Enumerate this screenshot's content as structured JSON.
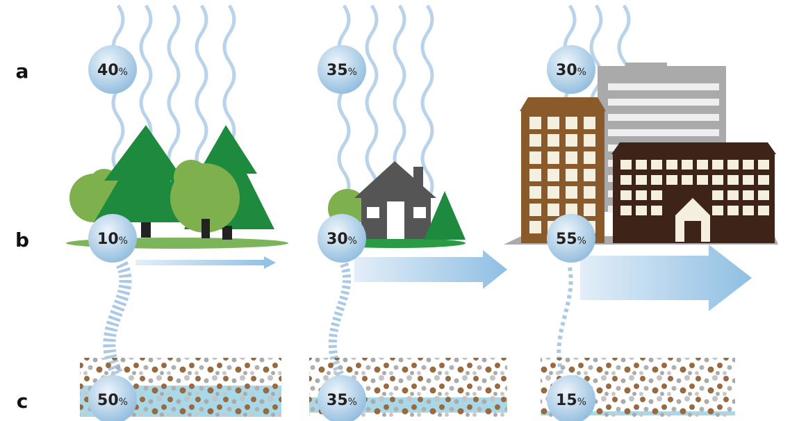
{
  "row_labels": [
    "a",
    "b",
    "c"
  ],
  "panels": [
    {
      "a": {
        "number": "40",
        "unit": "%"
      },
      "b": {
        "number": "10",
        "unit": "%"
      },
      "c": {
        "number": "50",
        "unit": "%"
      }
    },
    {
      "a": {
        "number": "35",
        "unit": "%"
      },
      "b": {
        "number": "30",
        "unit": "%"
      },
      "c": {
        "number": "35",
        "unit": "%"
      }
    },
    {
      "a": {
        "number": "30",
        "unit": "%"
      },
      "b": {
        "number": "55",
        "unit": "%"
      },
      "c": {
        "number": "15",
        "unit": "%"
      }
    }
  ]
}
